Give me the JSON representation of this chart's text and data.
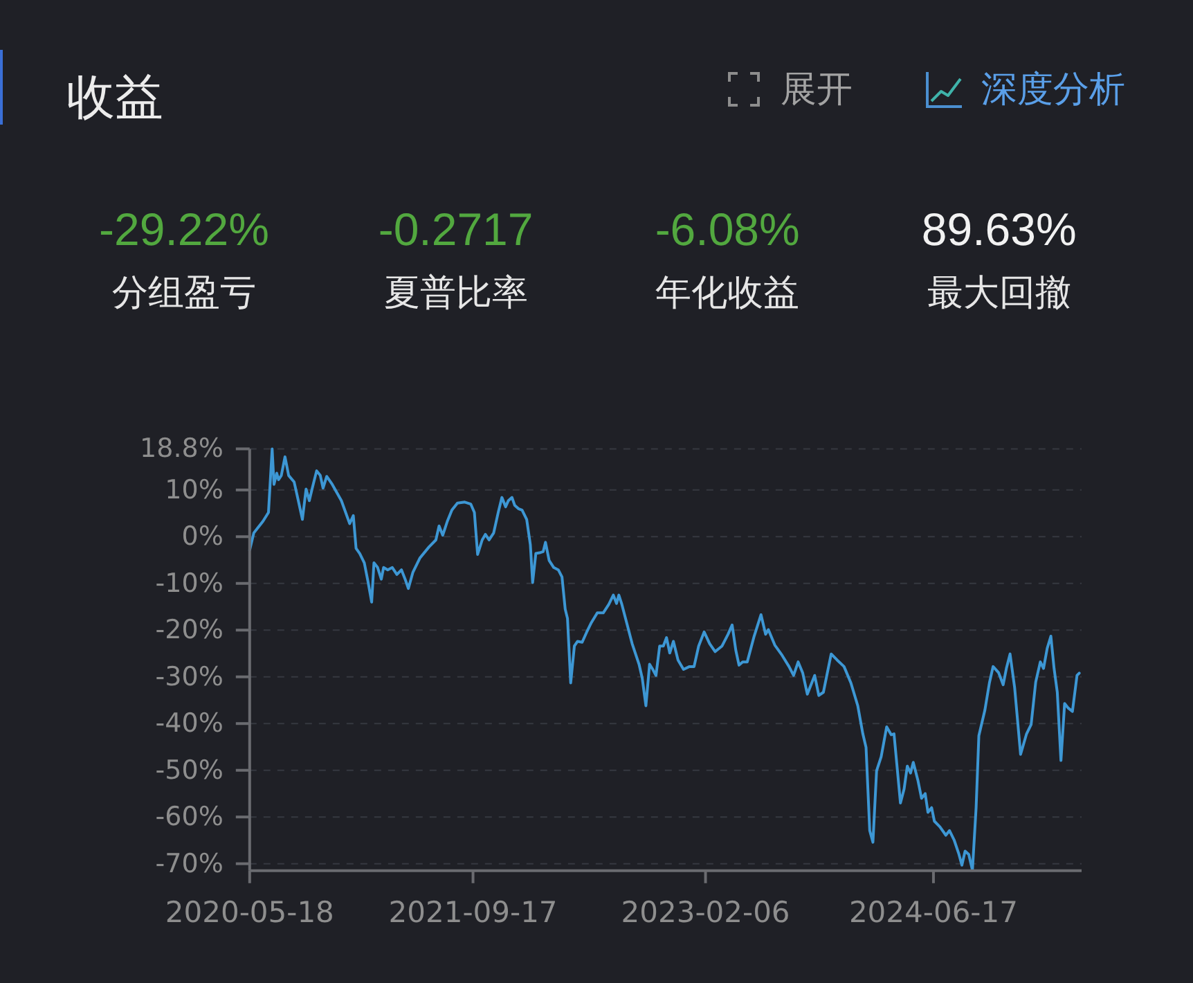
{
  "chart_data": {
    "type": "line",
    "title": "收益",
    "annotations": [
      "展开",
      "深度分析",
      "-29.22%",
      "分组盈亏",
      "-0.2717",
      "夏普比率",
      "-6.08%",
      "年化收益",
      "89.63%",
      "最大回撤"
    ],
    "x": [
      "2020-05-18",
      "2020-05-27",
      "2020-06-16",
      "2020-06-28",
      "2020-07-06",
      "2020-07-10",
      "2020-07-16",
      "2020-07-20",
      "2020-07-26",
      "2020-08-03",
      "2020-08-11",
      "2020-08-23",
      "2020-08-31",
      "2020-09-10",
      "2020-09-18",
      "2020-09-25",
      "2020-10-01",
      "2020-10-11",
      "2020-10-19",
      "2020-10-25",
      "2020-11-02",
      "2020-11-14",
      "2020-12-04",
      "2020-12-22",
      "2020-12-30",
      "2021-01-05",
      "2021-01-13",
      "2021-01-23",
      "2021-01-31",
      "2021-02-08",
      "2021-02-13",
      "2021-02-21",
      "2021-03-01",
      "2021-03-06",
      "2021-03-15",
      "2021-03-25",
      "2021-04-04",
      "2021-04-14",
      "2021-04-22",
      "2021-04-29",
      "2021-05-09",
      "2021-05-24",
      "2021-06-13",
      "2021-06-28",
      "2021-07-05",
      "2021-07-13",
      "2021-07-23",
      "2021-08-02",
      "2021-08-14",
      "2021-08-30",
      "2021-09-12",
      "2021-09-20",
      "2021-09-27",
      "2021-10-07",
      "2021-10-14",
      "2021-10-22",
      "2021-11-01",
      "2021-11-11",
      "2021-11-19",
      "2021-11-27",
      "2021-12-03",
      "2021-12-11",
      "2021-12-17",
      "2021-12-25",
      "2022-01-02",
      "2022-01-12",
      "2022-01-20",
      "2022-01-25",
      "2022-02-01",
      "2022-02-11",
      "2022-02-17",
      "2022-02-22",
      "2022-03-02",
      "2022-03-12",
      "2022-03-22",
      "2022-03-30",
      "2022-04-06",
      "2022-04-11",
      "2022-04-18",
      "2022-04-26",
      "2022-05-03",
      "2022-05-13",
      "2022-05-23",
      "2022-06-02",
      "2022-06-15",
      "2022-06-28",
      "2022-07-10",
      "2022-07-20",
      "2022-07-27",
      "2022-08-01",
      "2022-08-07",
      "2022-08-18",
      "2022-08-30",
      "2022-09-14",
      "2022-09-21",
      "2022-09-29",
      "2022-10-07",
      "2022-10-14",
      "2022-10-21",
      "2022-10-29",
      "2022-11-06",
      "2022-11-13",
      "2022-11-20",
      "2022-11-28",
      "2022-12-08",
      "2022-12-20",
      "2023-01-02",
      "2023-01-12",
      "2023-01-22",
      "2023-02-03",
      "2023-02-15",
      "2023-02-27",
      "2023-03-14",
      "2023-03-27",
      "2023-04-05",
      "2023-04-13",
      "2023-04-20",
      "2023-04-28",
      "2023-05-08",
      "2023-05-23",
      "2023-06-07",
      "2023-06-17",
      "2023-06-23",
      "2023-07-07",
      "2023-07-23",
      "2023-08-07",
      "2023-08-17",
      "2023-08-27",
      "2023-09-06",
      "2023-09-16",
      "2023-09-24",
      "2023-10-02",
      "2023-10-11",
      "2023-10-21",
      "2023-11-07",
      "2023-11-20",
      "2023-12-05",
      "2023-12-20",
      "2024-01-04",
      "2024-01-15",
      "2024-01-22",
      "2024-01-30",
      "2024-02-06",
      "2024-02-14",
      "2024-02-24",
      "2024-03-07",
      "2024-03-17",
      "2024-03-23",
      "2024-04-06",
      "2024-04-14",
      "2024-04-21",
      "2024-04-28",
      "2024-05-04",
      "2024-05-14",
      "2024-05-22",
      "2024-05-30",
      "2024-06-05",
      "2024-06-13",
      "2024-06-19",
      "2024-07-01",
      "2024-07-14",
      "2024-07-22",
      "2024-08-01",
      "2024-08-11",
      "2024-08-18",
      "2024-08-25",
      "2024-09-02",
      "2024-09-10",
      "2024-09-18",
      "2024-09-24",
      "2024-10-07",
      "2024-10-17",
      "2024-10-25",
      "2024-11-06",
      "2024-11-16",
      "2024-11-23",
      "2024-12-01",
      "2024-12-11",
      "2024-12-24",
      "2025-01-06",
      "2025-01-16",
      "2025-01-26",
      "2025-02-05",
      "2025-02-12",
      "2025-02-20",
      "2025-02-28",
      "2025-03-07",
      "2025-03-14",
      "2025-03-22",
      "2025-03-30",
      "2025-04-07",
      "2025-04-16",
      "2025-04-26",
      "2025-05-01"
    ],
    "series": [
      {
        "color": "#3d97d4",
        "values": [
          -2.9,
          0.8,
          3.3,
          5.2,
          18.8,
          11.2,
          13.6,
          12.2,
          13.1,
          17.1,
          13.1,
          11.7,
          8.2,
          3.7,
          10.2,
          7.7,
          10.2,
          14.1,
          13.1,
          10.4,
          12.9,
          11.2,
          7.7,
          2.8,
          4.5,
          -2.5,
          -3.6,
          -5.6,
          -9.6,
          -14.0,
          -5.6,
          -6.6,
          -9.1,
          -6.6,
          -7.1,
          -6.6,
          -8.1,
          -7.1,
          -9.1,
          -11.1,
          -7.6,
          -4.6,
          -2.2,
          -0.7,
          2.3,
          0.3,
          3.3,
          5.7,
          7.2,
          7.4,
          7.0,
          5.2,
          -3.8,
          -0.7,
          0.5,
          -0.7,
          0.8,
          5.2,
          8.4,
          6.4,
          7.7,
          8.4,
          6.7,
          6.0,
          5.7,
          3.7,
          -1.7,
          -9.8,
          -3.6,
          -3.4,
          -3.2,
          -1.2,
          -5.1,
          -6.6,
          -7.1,
          -8.6,
          -15.5,
          -17.5,
          -31.3,
          -23.4,
          -22.4,
          -22.6,
          -20.4,
          -18.4,
          -16.3,
          -16.3,
          -14.5,
          -12.5,
          -14.3,
          -12.5,
          -14.3,
          -18.4,
          -22.9,
          -27.3,
          -30.3,
          -36.2,
          -27.3,
          -28.4,
          -29.7,
          -23.4,
          -23.4,
          -21.6,
          -24.9,
          -22.4,
          -26.4,
          -28.4,
          -27.8,
          -27.8,
          -23.4,
          -20.4,
          -22.9,
          -24.6,
          -23.4,
          -20.9,
          -18.9,
          -24.3,
          -27.5,
          -26.8,
          -26.8,
          -21.3,
          -16.7,
          -20.9,
          -19.9,
          -23.2,
          -25.4,
          -27.8,
          -29.7,
          -26.8,
          -29.2,
          -33.7,
          -31.7,
          -29.7,
          -34.0,
          -33.3,
          -25.1,
          -26.4,
          -27.8,
          -31.3,
          -36.2,
          -42.2,
          -45.1,
          -62.9,
          -65.4,
          -50.1,
          -47.1,
          -40.7,
          -42.4,
          -42.2,
          -57.0,
          -54.0,
          -49.1,
          -50.6,
          -48.3,
          -52.1,
          -56.0,
          -55.0,
          -59.0,
          -58.0,
          -60.9,
          -62.1,
          -63.9,
          -62.9,
          -64.9,
          -67.8,
          -70.3,
          -67.3,
          -68.0,
          -71.4,
          -58.0,
          -42.6,
          -37.2,
          -31.3,
          -27.8,
          -29.1,
          -31.7,
          -28.2,
          -25.1,
          -32.3,
          -46.6,
          -42.2,
          -40.2,
          -31.1,
          -26.8,
          -28.2,
          -23.9,
          -21.3,
          -28.2,
          -33.3,
          -47.9,
          -35.7,
          -36.7,
          -37.4,
          -29.7,
          -29.2
        ]
      }
    ],
    "xlim": [
      "2020-05-18",
      "2025-05-06"
    ],
    "xticks": [
      "2020-05-18",
      "2021-09-17",
      "2023-02-06",
      "2024-06-17"
    ],
    "ylim": [
      -71.5,
      18.8
    ],
    "yticks": [
      {
        "value": 18.8,
        "label": "18.8%"
      },
      {
        "value": 10,
        "label": "10%"
      },
      {
        "value": 0,
        "label": "0%"
      },
      {
        "value": -10,
        "label": "-10%"
      },
      {
        "value": -20,
        "label": "-20%"
      },
      {
        "value": -30,
        "label": "-30%"
      },
      {
        "value": -40,
        "label": "-40%"
      },
      {
        "value": -50,
        "label": "-50%"
      },
      {
        "value": -60,
        "label": "-60%"
      },
      {
        "value": -70,
        "label": "-70%"
      }
    ],
    "grid": "y",
    "line_style": "solid"
  }
}
